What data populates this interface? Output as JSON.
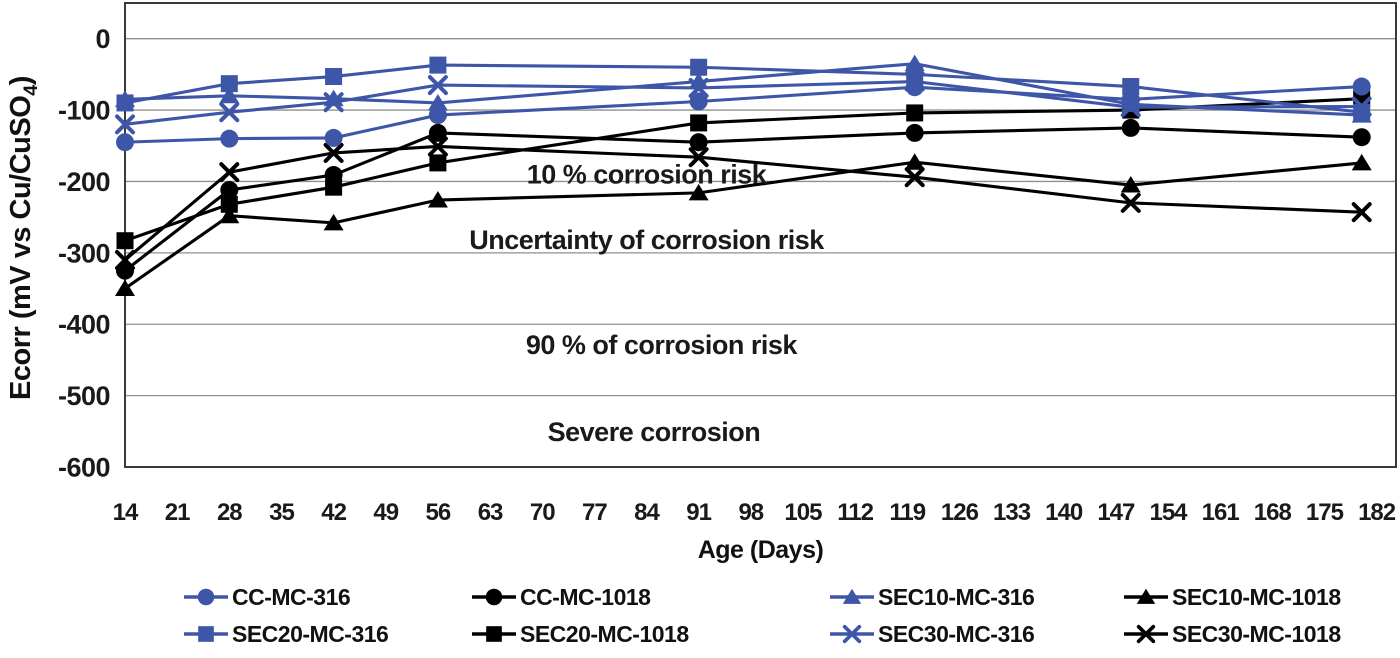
{
  "colors": {
    "blue": "#3E56A8",
    "black": "#000000",
    "grid": "#8f8f8f",
    "border": "#3a3a3a",
    "text": "#1a1a1a"
  },
  "chart_data": {
    "type": "line",
    "title": "",
    "xlabel": "Age (Days)",
    "ylabel": "Ecorr (mV vs Cu/CuSO4)",
    "ylabel_parts": {
      "pre": "Ecorr (mV vs Cu/CuSO",
      "sub": "4",
      "post": ")"
    },
    "ylim": [
      -600,
      50
    ],
    "y_ticks": [
      0,
      -100,
      -200,
      -300,
      -400,
      -500,
      -600
    ],
    "x_tick_labels": [
      14,
      21,
      28,
      35,
      42,
      49,
      56,
      63,
      70,
      77,
      84,
      91,
      98,
      105,
      112,
      119,
      126,
      133,
      140,
      147,
      154,
      161,
      168,
      175,
      182
    ],
    "grid": true,
    "legend_position": "bottom",
    "x_measurement_days": [
      14,
      28,
      42,
      56,
      91,
      120,
      149,
      180
    ],
    "series": [
      {
        "name": "CC-MC-316",
        "color": "blue",
        "marker": "circle",
        "values": [
          -145,
          -140,
          -139,
          -107,
          -88,
          -68,
          -85,
          -67
        ]
      },
      {
        "name": "CC-MC-1018",
        "color": "black",
        "marker": "circle",
        "values": [
          -325,
          -212,
          -191,
          -132,
          -145,
          -132,
          -125,
          -138
        ]
      },
      {
        "name": "SEC10-MC-316",
        "color": "blue",
        "marker": "triangle",
        "values": [
          -85,
          -80,
          -84,
          -90,
          -60,
          -35,
          -92,
          -107
        ]
      },
      {
        "name": "SEC10-MC-1018",
        "color": "black",
        "marker": "triangle",
        "values": [
          -350,
          -248,
          -258,
          -226,
          -216,
          -173,
          -205,
          -174
        ]
      },
      {
        "name": "SEC20-MC-316",
        "color": "blue",
        "marker": "square",
        "values": [
          -90,
          -63,
          -53,
          -37,
          -40,
          -50,
          -67,
          -103
        ]
      },
      {
        "name": "SEC20-MC-1018",
        "color": "black",
        "marker": "square",
        "values": [
          -283,
          -232,
          -208,
          -174,
          -118,
          -104,
          -100,
          -84
        ]
      },
      {
        "name": "SEC30-MC-316",
        "color": "blue",
        "marker": "x",
        "values": [
          -120,
          -103,
          -89,
          -65,
          -69,
          -60,
          -96,
          -95
        ]
      },
      {
        "name": "SEC30-MC-1018",
        "color": "black",
        "marker": "x",
        "values": [
          -310,
          -187,
          -160,
          -151,
          -166,
          -194,
          -230,
          -243
        ]
      }
    ],
    "legend_rows": [
      [
        0,
        1,
        2,
        3
      ],
      [
        4,
        5,
        6,
        7
      ]
    ],
    "annotations": [
      {
        "text": "10 % corrosion risk",
        "day": 84,
        "mv": -190
      },
      {
        "text": "Uncertainty of corrosion risk",
        "day": 84,
        "mv": -282
      },
      {
        "text": "90 % of corrosion risk",
        "day": 86,
        "mv": -429
      },
      {
        "text": "Severe corrosion",
        "day": 85,
        "mv": -551
      }
    ]
  }
}
